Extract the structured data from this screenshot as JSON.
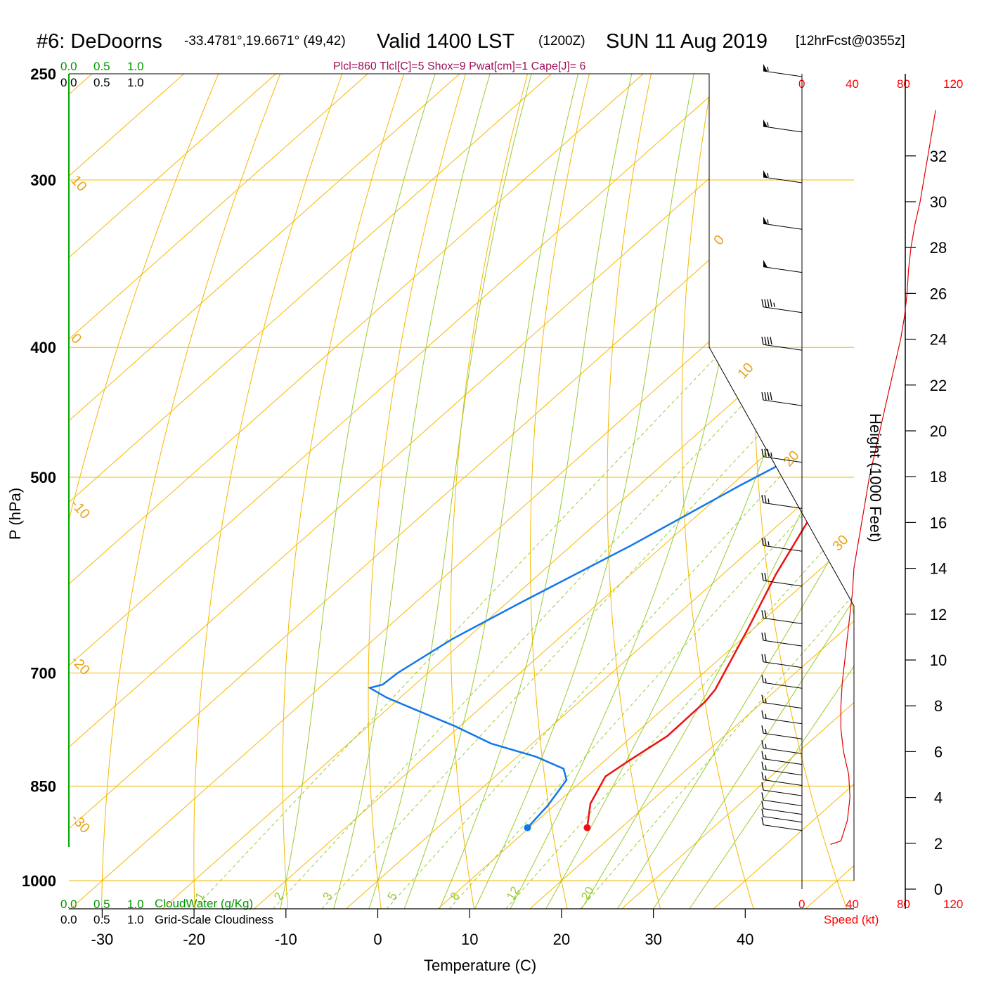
{
  "header": {
    "station": "#6: DeDoorns",
    "coords": "-33.4781°,19.6671° (49,42)",
    "valid": "Valid 1400 LST",
    "zulu": "(1200Z)",
    "date": "SUN 11 Aug 2019",
    "forecast": "[12hrFcst@0355z]"
  },
  "indices": "Plcl=860 Tlcl[C]=5 Shox=9 Pwat[cm]=1 Cape[J]= 6",
  "cloud_scale": {
    "ticks": [
      "0.0",
      "0.5",
      "1.0"
    ],
    "cloudwater_label": "CloudWater (g/Kg)",
    "cloudiness_label": "Grid-Scale Cloudiness"
  },
  "speed_scale": {
    "ticks": [
      "0",
      "40",
      "80",
      "120"
    ],
    "label": "Speed (kt)"
  },
  "axes": {
    "x_label": "Temperature (C)",
    "y_label": "P (hPa)",
    "height_label": "Height (1000 Feet)",
    "x_ticks": [
      "-30",
      "-20",
      "-10",
      "0",
      "10",
      "20",
      "30",
      "40"
    ],
    "p_ticks": [
      "250",
      "300",
      "400",
      "500",
      "700",
      "850",
      "1000"
    ],
    "height_ticks": [
      "0",
      "2",
      "4",
      "6",
      "8",
      "10",
      "12",
      "14",
      "16",
      "18",
      "20",
      "22",
      "24",
      "26",
      "28",
      "30",
      "32"
    ]
  },
  "isotherm_labels": [
    "10",
    "0",
    "-10",
    "-20",
    "-30",
    "0",
    "10",
    "20",
    "30"
  ],
  "mixing_ratio_labels": [
    "1",
    "2",
    "3",
    "5",
    "8",
    "12",
    "20"
  ],
  "colors": {
    "temperature": "#ee1111",
    "dewpoint": "#1177ee",
    "isotherm": "#f5b800",
    "dry_adiabat": "#f5b800",
    "moist_adiabat": "#99cc33",
    "mixing_ratio": "#99cc33",
    "cloud_axis": "#00aa00",
    "speed": "#ff0000"
  },
  "chart_data": {
    "type": "line",
    "title": "#6: DeDoorns Valid 1400 LST (1200Z) SUN 11 Aug 2019",
    "xlabel": "Temperature (C)",
    "ylabel": "P (hPa)",
    "xlim": [
      -35,
      47
    ],
    "plim": [
      1050,
      250
    ],
    "series": [
      {
        "type": "temperature",
        "points": [
          [
            16.3,
            913
          ],
          [
            13.7,
            876
          ],
          [
            12,
            836
          ],
          [
            12.6,
            815
          ],
          [
            13.8,
            780
          ],
          [
            13.7,
            735
          ],
          [
            13.3,
            720
          ],
          [
            9.5,
            650
          ],
          [
            5.8,
            591
          ],
          [
            2.5,
            535
          ],
          [
            -0.4,
            492
          ],
          [
            -3.2,
            452
          ],
          [
            -5.6,
            421
          ],
          [
            -7.6,
            398
          ],
          [
            -10.5,
            368
          ],
          [
            -12.5,
            347
          ],
          [
            -14.3,
            333
          ],
          [
            -15.8,
            316
          ],
          [
            -16.2,
            299
          ],
          [
            -16.5,
            284
          ],
          [
            -16.2,
            266
          ],
          [
            -15.6,
            250
          ]
        ]
      },
      {
        "type": "dewpoint",
        "points": [
          [
            9.8,
            913
          ],
          [
            9.7,
            906
          ],
          [
            9.3,
            879
          ],
          [
            8.2,
            841
          ],
          [
            6.5,
            825
          ],
          [
            2,
            808
          ],
          [
            -4.5,
            790
          ],
          [
            -10.5,
            767
          ],
          [
            -17,
            745
          ],
          [
            -21.5,
            730
          ],
          [
            -24.5,
            718
          ],
          [
            -23.5,
            714
          ],
          [
            -23.3,
            700
          ],
          [
            -21.5,
            660
          ],
          [
            -18.5,
            620
          ],
          [
            -13.5,
            562
          ],
          [
            -9,
            507
          ],
          [
            -5,
            468
          ],
          [
            -4,
            435
          ],
          [
            -3.8,
            401
          ],
          [
            -5.5,
            372
          ],
          [
            -8,
            336
          ],
          [
            -10,
            313
          ],
          [
            -13,
            289
          ],
          [
            -16,
            265
          ],
          [
            -18.4,
            250
          ]
        ]
      }
    ],
    "speed_profile_kt": [
      [
        22,
        1.95
      ],
      [
        30,
        2.1
      ],
      [
        35,
        3
      ],
      [
        37,
        4
      ],
      [
        36,
        5
      ],
      [
        32,
        6
      ],
      [
        30,
        7
      ],
      [
        30,
        8
      ],
      [
        31,
        9
      ],
      [
        33,
        10
      ],
      [
        35,
        11
      ],
      [
        37,
        12
      ],
      [
        39,
        13
      ],
      [
        40,
        14
      ],
      [
        43,
        15
      ],
      [
        46,
        16
      ],
      [
        49,
        17
      ],
      [
        52,
        18
      ],
      [
        56,
        19
      ],
      [
        60,
        20
      ],
      [
        64,
        21
      ],
      [
        68,
        22
      ],
      [
        72,
        23
      ],
      [
        76,
        24
      ],
      [
        79,
        25
      ],
      [
        81,
        26
      ],
      [
        82,
        27
      ],
      [
        84,
        28
      ],
      [
        87,
        29
      ],
      [
        91,
        30
      ],
      [
        94,
        31
      ],
      [
        97,
        32
      ],
      [
        100,
        33
      ],
      [
        103,
        34
      ]
    ],
    "wind_barbs": [
      {
        "p": 250,
        "kt": 55
      },
      {
        "p": 275,
        "kt": 55
      },
      {
        "p": 300,
        "kt": 55
      },
      {
        "p": 325,
        "kt": 55
      },
      {
        "p": 350,
        "kt": 50
      },
      {
        "p": 375,
        "kt": 45
      },
      {
        "p": 400,
        "kt": 40
      },
      {
        "p": 440,
        "kt": 40
      },
      {
        "p": 485,
        "kt": 35
      },
      {
        "p": 525,
        "kt": 25
      },
      {
        "p": 565,
        "kt": 25
      },
      {
        "p": 600,
        "kt": 20
      },
      {
        "p": 640,
        "kt": 20
      },
      {
        "p": 665,
        "kt": 20
      },
      {
        "p": 690,
        "kt": 20
      },
      {
        "p": 715,
        "kt": 15
      },
      {
        "p": 740,
        "kt": 15
      },
      {
        "p": 760,
        "kt": 15
      },
      {
        "p": 780,
        "kt": 15
      },
      {
        "p": 800,
        "kt": 15
      },
      {
        "p": 815,
        "kt": 15
      },
      {
        "p": 830,
        "kt": 15
      },
      {
        "p": 845,
        "kt": 15
      },
      {
        "p": 860,
        "kt": 10
      },
      {
        "p": 875,
        "kt": 10
      },
      {
        "p": 888,
        "kt": 10
      },
      {
        "p": 900,
        "kt": 10
      },
      {
        "p": 913,
        "kt": 10
      }
    ]
  }
}
